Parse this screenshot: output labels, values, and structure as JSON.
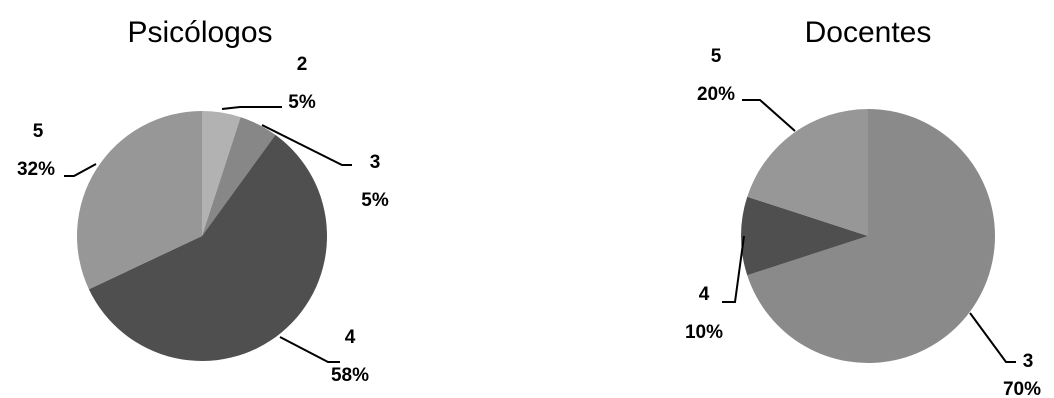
{
  "chart_data": [
    {
      "type": "pie",
      "title": "Psicólogos",
      "slices": [
        {
          "label": "2",
          "value": 5,
          "pct": "5%",
          "color": "#b2b2b2"
        },
        {
          "label": "3",
          "value": 5,
          "pct": "5%",
          "color": "#878787"
        },
        {
          "label": "4",
          "value": 58,
          "pct": "58%",
          "color": "#4f4f4f"
        },
        {
          "label": "5",
          "value": 32,
          "pct": "32%",
          "color": "#979797"
        }
      ]
    },
    {
      "type": "pie",
      "title": "Docentes",
      "slices": [
        {
          "label": "3",
          "value": 70,
          "pct": "70%",
          "color": "#8a8a8a"
        },
        {
          "label": "4",
          "value": 10,
          "pct": "10%",
          "color": "#4f4f4f"
        },
        {
          "label": "5",
          "value": 20,
          "pct": "20%",
          "color": "#979797"
        }
      ]
    }
  ]
}
